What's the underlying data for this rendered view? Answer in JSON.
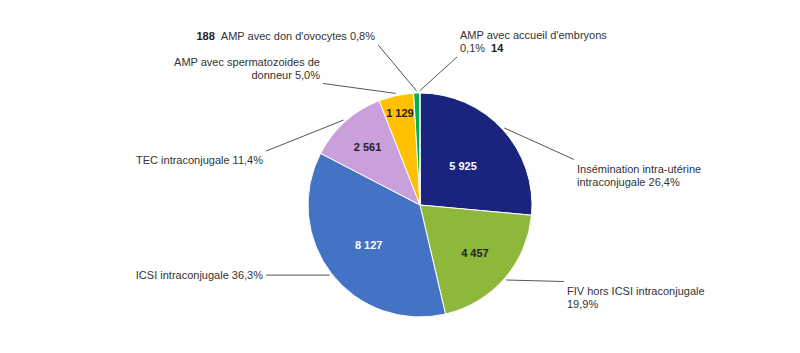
{
  "chart_data": {
    "type": "pie",
    "categories": [
      "Insémination  intra-utérine\nintraconjugale 26,4%",
      "FIV  hors ICSI  intraconjugale\n19,9%",
      "ICSI  intraconjugale 36,3%",
      "TEC  intraconjugale 11,4%",
      "AMP avec spermatozoides de\ndonneur 5,0%",
      "AMP avec don d'ovocytes 0,8%",
      "AMP avec accueil d'embryons\n0,1%"
    ],
    "values": [
      5925,
      4457,
      8127,
      2561,
      1129,
      188,
      14
    ],
    "value_labels": [
      "5 925",
      "4 457",
      "8 127",
      "2 561",
      "1 129",
      "188",
      "14"
    ],
    "colors": [
      "#1a237e",
      "#8db83a",
      "#4472c4",
      "#c9a0dc",
      "#ffc000",
      "#00b050",
      "#17375e"
    ],
    "data_labels": true
  }
}
